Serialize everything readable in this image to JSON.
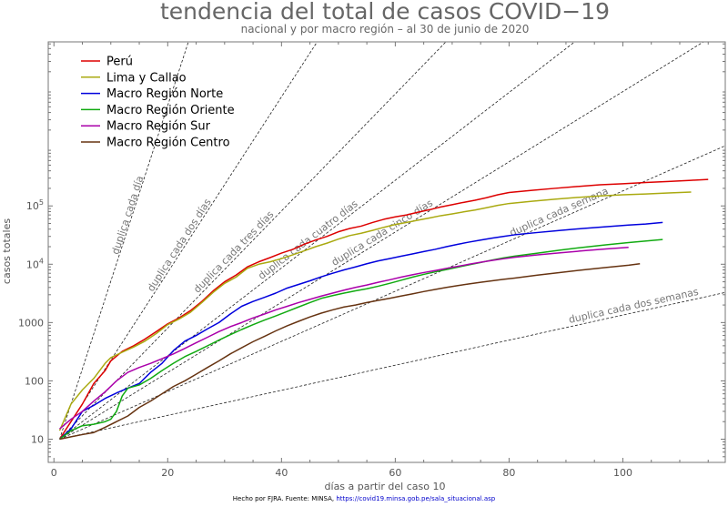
{
  "chart_data": {
    "type": "line",
    "title": "tendencia del total de casos COVID−19",
    "subtitle": "nacional y por macro región – al 30 de junio de 2020",
    "xlabel": "días a partir del caso 10",
    "ylabel": "casos totales",
    "xlim": [
      -1,
      118
    ],
    "ylim": [
      4,
      65000000
    ],
    "y_scale": "log",
    "x_ticks": [
      0,
      20,
      40,
      60,
      80,
      100
    ],
    "x_tick_labels": [
      "0",
      "20",
      "40",
      "60",
      "80",
      "100"
    ],
    "y_ticks": [
      10,
      100,
      1000,
      10000,
      100000
    ],
    "y_tick_labels": [
      "10",
      "100",
      "1000",
      "10^4",
      "10^5"
    ],
    "grid": false,
    "legend_position": "top-left",
    "reference_lines": [
      {
        "label": "duplica cada día",
        "doubling_days": 1,
        "label_x": 13.5
      },
      {
        "label": "duplica cada dos días",
        "doubling_days": 2,
        "label_x": 22.5
      },
      {
        "label": "duplica cada tres días",
        "doubling_days": 3,
        "label_x": 32
      },
      {
        "label": "duplica cada cuatro días",
        "doubling_days": 4,
        "label_x": 45
      },
      {
        "label": "duplica cada cinco días",
        "doubling_days": 5,
        "label_x": 58
      },
      {
        "label": "duplica cada semana",
        "doubling_days": 7,
        "label_x": 89
      },
      {
        "label": "duplica cada dos semanas",
        "doubling_days": 14,
        "label_x": 102
      }
    ],
    "series": [
      {
        "name": "Perú",
        "color": "#dd0000",
        "points": [
          [
            1,
            10
          ],
          [
            3,
            20
          ],
          [
            5,
            40
          ],
          [
            7,
            90
          ],
          [
            9,
            150
          ],
          [
            10,
            220
          ],
          [
            12,
            320
          ],
          [
            14,
            400
          ],
          [
            16,
            520
          ],
          [
            18,
            700
          ],
          [
            20,
            950
          ],
          [
            22,
            1200
          ],
          [
            24,
            1600
          ],
          [
            26,
            2300
          ],
          [
            28,
            3500
          ],
          [
            30,
            5000
          ],
          [
            32,
            6500
          ],
          [
            34,
            9000
          ],
          [
            36,
            11000
          ],
          [
            38,
            13000
          ],
          [
            40,
            15500
          ],
          [
            42,
            18000
          ],
          [
            44,
            22000
          ],
          [
            46,
            26000
          ],
          [
            48,
            30000
          ],
          [
            50,
            36000
          ],
          [
            52,
            41000
          ],
          [
            54,
            45000
          ],
          [
            56,
            52000
          ],
          [
            58,
            59000
          ],
          [
            60,
            65000
          ],
          [
            62,
            70000
          ],
          [
            64,
            78000
          ],
          [
            66,
            86000
          ],
          [
            68,
            96000
          ],
          [
            70,
            105000
          ],
          [
            72,
            115000
          ],
          [
            74,
            125000
          ],
          [
            76,
            138000
          ],
          [
            78,
            155000
          ],
          [
            80,
            170000
          ],
          [
            84,
            185000
          ],
          [
            88,
            200000
          ],
          [
            92,
            215000
          ],
          [
            96,
            230000
          ],
          [
            100,
            240000
          ],
          [
            104,
            252000
          ],
          [
            108,
            262000
          ],
          [
            112,
            275000
          ],
          [
            115,
            285000
          ]
        ]
      },
      {
        "name": "Lima y Callao",
        "color": "#aaaa11",
        "points": [
          [
            1,
            14
          ],
          [
            3,
            40
          ],
          [
            5,
            70
          ],
          [
            7,
            110
          ],
          [
            9,
            200
          ],
          [
            10,
            250
          ],
          [
            12,
            310
          ],
          [
            14,
            380
          ],
          [
            16,
            480
          ],
          [
            18,
            650
          ],
          [
            20,
            920
          ],
          [
            22,
            1150
          ],
          [
            24,
            1500
          ],
          [
            26,
            2200
          ],
          [
            28,
            3300
          ],
          [
            30,
            4700
          ],
          [
            32,
            6000
          ],
          [
            34,
            8500
          ],
          [
            36,
            10000
          ],
          [
            38,
            11000
          ],
          [
            40,
            12500
          ],
          [
            42,
            14500
          ],
          [
            44,
            17000
          ],
          [
            46,
            20000
          ],
          [
            48,
            23000
          ],
          [
            50,
            27000
          ],
          [
            52,
            31000
          ],
          [
            54,
            34000
          ],
          [
            56,
            38000
          ],
          [
            58,
            43000
          ],
          [
            60,
            48000
          ],
          [
            62,
            52000
          ],
          [
            64,
            57000
          ],
          [
            66,
            62000
          ],
          [
            68,
            68000
          ],
          [
            70,
            73000
          ],
          [
            72,
            79000
          ],
          [
            74,
            85000
          ],
          [
            76,
            93000
          ],
          [
            78,
            102000
          ],
          [
            80,
            110000
          ],
          [
            84,
            120000
          ],
          [
            88,
            130000
          ],
          [
            92,
            140000
          ],
          [
            96,
            148000
          ],
          [
            100,
            155000
          ],
          [
            104,
            160000
          ],
          [
            108,
            167000
          ],
          [
            112,
            173000
          ]
        ]
      },
      {
        "name": "Macro Región Norte",
        "color": "#0000dd",
        "points": [
          [
            1,
            10
          ],
          [
            3,
            15
          ],
          [
            5,
            30
          ],
          [
            7,
            38
          ],
          [
            9,
            50
          ],
          [
            11,
            62
          ],
          [
            13,
            75
          ],
          [
            15,
            90
          ],
          [
            17,
            140
          ],
          [
            19,
            200
          ],
          [
            21,
            330
          ],
          [
            23,
            480
          ],
          [
            25,
            600
          ],
          [
            27,
            780
          ],
          [
            29,
            1000
          ],
          [
            31,
            1400
          ],
          [
            33,
            1900
          ],
          [
            35,
            2300
          ],
          [
            37,
            2700
          ],
          [
            39,
            3200
          ],
          [
            41,
            3900
          ],
          [
            43,
            4500
          ],
          [
            45,
            5200
          ],
          [
            47,
            6100
          ],
          [
            49,
            7000
          ],
          [
            51,
            8000
          ],
          [
            53,
            9000
          ],
          [
            55,
            10200
          ],
          [
            57,
            11400
          ],
          [
            59,
            12500
          ],
          [
            61,
            13700
          ],
          [
            63,
            15000
          ],
          [
            65,
            16500
          ],
          [
            67,
            18000
          ],
          [
            69,
            20000
          ],
          [
            71,
            22000
          ],
          [
            73,
            24000
          ],
          [
            75,
            26000
          ],
          [
            77,
            28000
          ],
          [
            79,
            30000
          ],
          [
            81,
            32000
          ],
          [
            85,
            35000
          ],
          [
            89,
            38000
          ],
          [
            93,
            41000
          ],
          [
            97,
            44000
          ],
          [
            101,
            47000
          ],
          [
            104,
            49000
          ],
          [
            107,
            52000
          ]
        ]
      },
      {
        "name": "Macro Región Oriente",
        "color": "#11aa11",
        "points": [
          [
            1,
            10
          ],
          [
            3,
            14
          ],
          [
            5,
            17
          ],
          [
            7,
            18
          ],
          [
            9,
            20
          ],
          [
            10,
            22
          ],
          [
            11,
            30
          ],
          [
            12,
            55
          ],
          [
            13,
            75
          ],
          [
            15,
            85
          ],
          [
            17,
            110
          ],
          [
            19,
            150
          ],
          [
            21,
            200
          ],
          [
            23,
            260
          ],
          [
            25,
            320
          ],
          [
            27,
            400
          ],
          [
            29,
            500
          ],
          [
            31,
            620
          ],
          [
            33,
            760
          ],
          [
            35,
            920
          ],
          [
            37,
            1100
          ],
          [
            39,
            1300
          ],
          [
            41,
            1550
          ],
          [
            43,
            1850
          ],
          [
            45,
            2200
          ],
          [
            47,
            2600
          ],
          [
            49,
            2900
          ],
          [
            51,
            3200
          ],
          [
            53,
            3500
          ],
          [
            55,
            3800
          ],
          [
            57,
            4200
          ],
          [
            59,
            4700
          ],
          [
            61,
            5300
          ],
          [
            63,
            6000
          ],
          [
            65,
            6700
          ],
          [
            67,
            7400
          ],
          [
            69,
            8100
          ],
          [
            71,
            8900
          ],
          [
            73,
            9800
          ],
          [
            75,
            10700
          ],
          [
            77,
            11800
          ],
          [
            79,
            12800
          ],
          [
            81,
            13800
          ],
          [
            85,
            15500
          ],
          [
            89,
            17500
          ],
          [
            93,
            19500
          ],
          [
            97,
            21500
          ],
          [
            101,
            23500
          ],
          [
            105,
            25500
          ],
          [
            107,
            26500
          ]
        ]
      },
      {
        "name": "Macro Región Sur",
        "color": "#aa00aa",
        "points": [
          [
            1,
            15
          ],
          [
            3,
            22
          ],
          [
            5,
            30
          ],
          [
            7,
            45
          ],
          [
            9,
            65
          ],
          [
            11,
            100
          ],
          [
            13,
            140
          ],
          [
            15,
            170
          ],
          [
            17,
            200
          ],
          [
            19,
            240
          ],
          [
            21,
            290
          ],
          [
            23,
            360
          ],
          [
            25,
            450
          ],
          [
            27,
            560
          ],
          [
            29,
            700
          ],
          [
            31,
            850
          ],
          [
            33,
            1000
          ],
          [
            35,
            1200
          ],
          [
            37,
            1400
          ],
          [
            39,
            1650
          ],
          [
            41,
            1900
          ],
          [
            43,
            2200
          ],
          [
            45,
            2500
          ],
          [
            47,
            2850
          ],
          [
            49,
            3200
          ],
          [
            51,
            3600
          ],
          [
            53,
            4000
          ],
          [
            55,
            4400
          ],
          [
            57,
            4900
          ],
          [
            59,
            5400
          ],
          [
            61,
            6000
          ],
          [
            63,
            6600
          ],
          [
            65,
            7200
          ],
          [
            67,
            7800
          ],
          [
            69,
            8500
          ],
          [
            71,
            9200
          ],
          [
            73,
            10000
          ],
          [
            75,
            10800
          ],
          [
            77,
            11600
          ],
          [
            79,
            12400
          ],
          [
            81,
            13200
          ],
          [
            85,
            14500
          ],
          [
            89,
            15700
          ],
          [
            93,
            17000
          ],
          [
            97,
            18300
          ],
          [
            101,
            19500
          ]
        ]
      },
      {
        "name": "Macro Región Centro",
        "color": "#663311",
        "points": [
          [
            1,
            10
          ],
          [
            3,
            11
          ],
          [
            5,
            12
          ],
          [
            7,
            13
          ],
          [
            9,
            16
          ],
          [
            11,
            20
          ],
          [
            13,
            25
          ],
          [
            15,
            35
          ],
          [
            17,
            45
          ],
          [
            19,
            60
          ],
          [
            21,
            80
          ],
          [
            23,
            100
          ],
          [
            25,
            130
          ],
          [
            27,
            170
          ],
          [
            29,
            220
          ],
          [
            31,
            290
          ],
          [
            33,
            370
          ],
          [
            35,
            470
          ],
          [
            37,
            580
          ],
          [
            39,
            720
          ],
          [
            41,
            880
          ],
          [
            43,
            1050
          ],
          [
            45,
            1250
          ],
          [
            47,
            1450
          ],
          [
            49,
            1650
          ],
          [
            51,
            1850
          ],
          [
            53,
            2000
          ],
          [
            55,
            2200
          ],
          [
            57,
            2400
          ],
          [
            59,
            2600
          ],
          [
            61,
            2850
          ],
          [
            63,
            3100
          ],
          [
            65,
            3400
          ],
          [
            67,
            3700
          ],
          [
            69,
            4000
          ],
          [
            71,
            4300
          ],
          [
            73,
            4600
          ],
          [
            75,
            4900
          ],
          [
            77,
            5200
          ],
          [
            79,
            5500
          ],
          [
            81,
            5800
          ],
          [
            85,
            6500
          ],
          [
            89,
            7200
          ],
          [
            93,
            8000
          ],
          [
            97,
            8800
          ],
          [
            101,
            9600
          ],
          [
            103,
            10200
          ]
        ]
      }
    ]
  },
  "footer": {
    "credit": "Hecho por FJRA. Fuente: MINSA, ",
    "link": "https://covid19.minsa.gob.pe/sala_situacional.asp"
  }
}
